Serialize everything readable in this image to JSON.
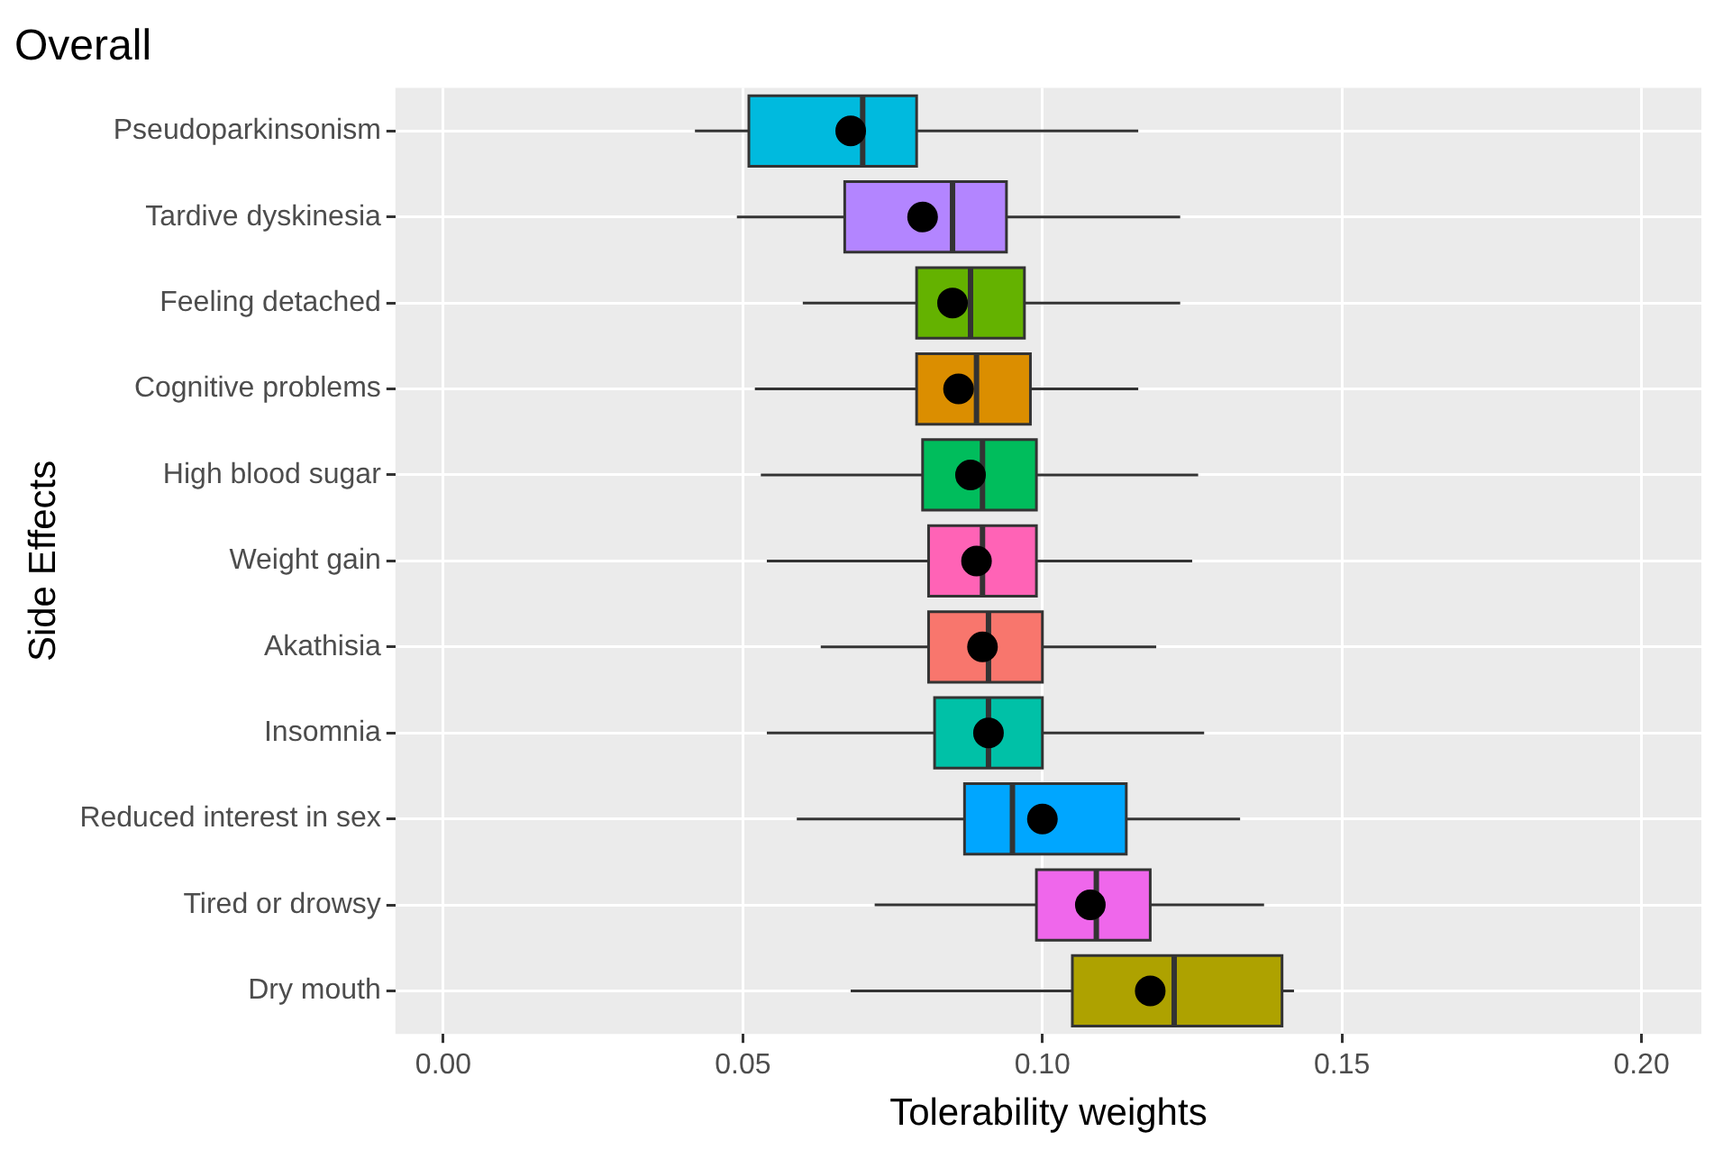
{
  "chart_data": {
    "type": "box",
    "orientation": "horizontal",
    "title": "Overall",
    "xlabel": "Tolerability weights",
    "ylabel": "Side Effects",
    "categories": [
      "Pseudoparkinsonism",
      "Tardive dyskinesia",
      "Feeling detached",
      "Cognitive problems",
      "High blood sugar",
      "Weight gain",
      "Akathisia",
      "Insomnia",
      "Reduced interest in sex",
      "Tired or drowsy",
      "Dry mouth"
    ],
    "colors": [
      "#00bade",
      "#b385ff",
      "#64b200",
      "#db8e00",
      "#00bd5c",
      "#ff63b6",
      "#f8766d",
      "#00c1a7",
      "#00a6ff",
      "#ef67eb",
      "#aea200"
    ],
    "boxes": [
      {
        "low": 0.042,
        "q1": 0.051,
        "median": 0.07,
        "q3": 0.079,
        "high": 0.116,
        "mean": 0.068
      },
      {
        "low": 0.049,
        "q1": 0.067,
        "median": 0.085,
        "q3": 0.094,
        "high": 0.123,
        "mean": 0.08
      },
      {
        "low": 0.06,
        "q1": 0.079,
        "median": 0.088,
        "q3": 0.097,
        "high": 0.123,
        "mean": 0.085
      },
      {
        "low": 0.052,
        "q1": 0.079,
        "median": 0.089,
        "q3": 0.098,
        "high": 0.116,
        "mean": 0.086
      },
      {
        "low": 0.053,
        "q1": 0.08,
        "median": 0.09,
        "q3": 0.099,
        "high": 0.126,
        "mean": 0.088
      },
      {
        "low": 0.054,
        "q1": 0.081,
        "median": 0.09,
        "q3": 0.099,
        "high": 0.125,
        "mean": 0.089
      },
      {
        "low": 0.063,
        "q1": 0.081,
        "median": 0.091,
        "q3": 0.1,
        "high": 0.119,
        "mean": 0.09
      },
      {
        "low": 0.054,
        "q1": 0.082,
        "median": 0.091,
        "q3": 0.1,
        "high": 0.127,
        "mean": 0.091
      },
      {
        "low": 0.059,
        "q1": 0.087,
        "median": 0.095,
        "q3": 0.114,
        "high": 0.133,
        "mean": 0.1
      },
      {
        "low": 0.072,
        "q1": 0.099,
        "median": 0.109,
        "q3": 0.118,
        "high": 0.137,
        "mean": 0.108
      },
      {
        "low": 0.068,
        "q1": 0.105,
        "median": 0.122,
        "q3": 0.14,
        "high": 0.142,
        "mean": 0.118
      }
    ],
    "xlim": [
      -0.008,
      0.21
    ],
    "xticks": [
      {
        "value": 0,
        "label": "0.00"
      },
      {
        "value": 0.05,
        "label": "0.05"
      },
      {
        "value": 0.1,
        "label": "0.10"
      },
      {
        "value": 0.15,
        "label": "0.15"
      },
      {
        "value": 0.2,
        "label": "0.20"
      }
    ],
    "grid": true,
    "legend": false
  }
}
